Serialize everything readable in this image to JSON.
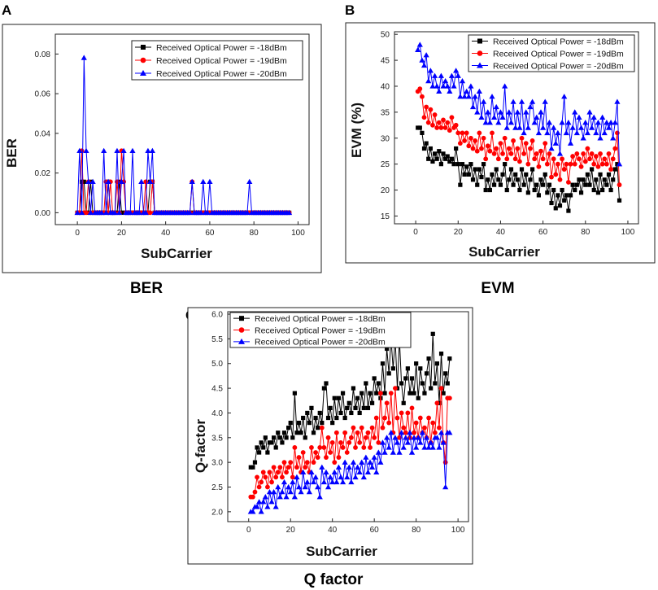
{
  "chart_data": [
    {
      "id": "A",
      "letter": "A",
      "caption": "BER",
      "type": "line",
      "xlabel": "SubCarrier",
      "ylabel": "BER",
      "xlim": [
        -10,
        105
      ],
      "ylim": [
        -0.006,
        0.09
      ],
      "xticks": [
        0,
        20,
        40,
        60,
        80,
        100
      ],
      "xtick_labels": [
        "0",
        "20",
        "40",
        "60",
        "80",
        "100"
      ],
      "yticks": [
        0,
        0.02,
        0.04,
        0.06,
        0.08
      ],
      "ytick_labels": [
        "0.00",
        "0.02",
        "0.04",
        "0.06",
        "0.08"
      ],
      "legend_position": "top-right",
      "series": [
        {
          "name": "Received Optical Power = -18dBm",
          "color": "#000000",
          "marker": "square",
          "spikes": [
            [
              2,
              0.0156
            ],
            [
              3,
              0.0156
            ],
            [
              6,
              0.0156
            ],
            [
              14,
              0.0156
            ],
            [
              19,
              0.0156
            ],
            [
              33,
              0.0156
            ],
            [
              34,
              0.0156
            ]
          ]
        },
        {
          "name": "Received Optical Power = -19dBm",
          "color": "#ff0000",
          "marker": "circle",
          "spikes": [
            [
              2,
              0.0312
            ],
            [
              5,
              0.0156
            ],
            [
              13,
              0.0156
            ],
            [
              15,
              0.0156
            ],
            [
              18,
              0.0156
            ],
            [
              20,
              0.0312
            ],
            [
              21,
              0.0156
            ],
            [
              31,
              0.0156
            ],
            [
              34,
              0.0156
            ],
            [
              52,
              0.0156
            ]
          ]
        },
        {
          "name": "Received Optical Power = -20dBm",
          "color": "#0000ff",
          "marker": "triangle",
          "spikes": [
            [
              1,
              0.0312
            ],
            [
              3,
              0.0781
            ],
            [
              4,
              0.0312
            ],
            [
              5,
              0.0156
            ],
            [
              7,
              0.0156
            ],
            [
              12,
              0.0312
            ],
            [
              14,
              0.0156
            ],
            [
              18,
              0.0312
            ],
            [
              20,
              0.0156
            ],
            [
              21,
              0.0312
            ],
            [
              25,
              0.0312
            ],
            [
              29,
              0.0156
            ],
            [
              32,
              0.0312
            ],
            [
              33,
              0.0156
            ],
            [
              34,
              0.0312
            ],
            [
              52,
              0.0156
            ],
            [
              57,
              0.0156
            ],
            [
              60,
              0.0156
            ],
            [
              78,
              0.0156
            ]
          ]
        }
      ]
    },
    {
      "id": "B",
      "letter": "B",
      "caption": "EVM",
      "type": "line",
      "xlabel": "SubCarrier",
      "ylabel": "EVM (%)",
      "xlim": [
        -10,
        105
      ],
      "ylim": [
        13.5,
        50.5
      ],
      "xticks": [
        0,
        20,
        40,
        60,
        80,
        100
      ],
      "xtick_labels": [
        "0",
        "20",
        "40",
        "60",
        "80",
        "100"
      ],
      "yticks": [
        15,
        20,
        25,
        30,
        35,
        40,
        45,
        50
      ],
      "ytick_labels": [
        "15",
        "20",
        "25",
        "30",
        "35",
        "40",
        "45",
        "50"
      ],
      "legend_position": "top-right",
      "series": [
        {
          "name": "Received Optical Power = -18dBm",
          "color": "#000000",
          "marker": "square",
          "values": [
            32,
            32,
            31,
            28,
            29,
            26,
            28,
            25.5,
            27,
            26,
            27.5,
            25,
            27,
            26,
            26.5,
            25.5,
            26,
            25,
            28,
            25,
            21,
            25,
            23,
            24.5,
            23,
            25,
            22,
            24,
            21,
            24,
            22.5,
            25,
            20,
            22,
            20,
            23,
            21,
            24,
            22,
            21,
            23,
            25,
            20,
            22,
            24,
            21,
            23,
            22,
            20,
            24,
            21,
            23,
            19.5,
            22,
            24,
            20,
            21,
            19,
            22,
            21,
            23,
            19.5,
            21,
            17.5,
            20,
            16.5,
            19,
            17,
            20,
            18,
            19,
            16,
            19,
            21,
            20,
            21,
            22,
            19.5,
            22,
            21,
            23,
            21,
            24,
            20,
            22,
            19.5,
            23,
            20,
            22,
            21,
            23,
            20,
            22,
            24,
            25,
            18
          ]
        },
        {
          "name": "Received Optical Power = -19dBm",
          "color": "#ff0000",
          "marker": "circle",
          "values": [
            39,
            39.5,
            38,
            34,
            36,
            33,
            35.5,
            32.5,
            34.5,
            32,
            33,
            32,
            33.5,
            32,
            33,
            31.5,
            34,
            32,
            32.5,
            31,
            29,
            31,
            29.5,
            31,
            28.5,
            30,
            28,
            29.5,
            27.5,
            31,
            28,
            30,
            26,
            28.5,
            27.5,
            31,
            27,
            28,
            26,
            29,
            27,
            30,
            26,
            28,
            27,
            29.5,
            26,
            28,
            25.5,
            30,
            27,
            29,
            25,
            28,
            29.5,
            26,
            27,
            24.5,
            27.5,
            26,
            29,
            25,
            27,
            22.5,
            26,
            23,
            25,
            22,
            26,
            24,
            25,
            21.5,
            25,
            26.5,
            25,
            27,
            26,
            24.5,
            27,
            25.5,
            28,
            26,
            27,
            25,
            26.5,
            24.5,
            27,
            25,
            26,
            25,
            27,
            24,
            26,
            28,
            31,
            21
          ]
        },
        {
          "name": "Received Optical Power = -20dBm",
          "color": "#0000ff",
          "marker": "triangle",
          "values": [
            47,
            48,
            45,
            44,
            46,
            41,
            43,
            40,
            42,
            40,
            39,
            42,
            40,
            41,
            40,
            39,
            42,
            40,
            43,
            42,
            38,
            41,
            38,
            39,
            38,
            40,
            36,
            38,
            35,
            39,
            34,
            37,
            33,
            35,
            33,
            38,
            34,
            36,
            33,
            35,
            34,
            40,
            32,
            35,
            33,
            37,
            32,
            35,
            32,
            37,
            31,
            35,
            32,
            36,
            37,
            33,
            34,
            31,
            35,
            32,
            37,
            31,
            33,
            28,
            32,
            29,
            31,
            27,
            33,
            38,
            31,
            33,
            29,
            32,
            35,
            31,
            34,
            32,
            30,
            33,
            31,
            35,
            32,
            34,
            31,
            33,
            30,
            34,
            31,
            33,
            32,
            33,
            30,
            33,
            37,
            25
          ]
        }
      ]
    },
    {
      "id": "C",
      "letter": "C",
      "caption": "Q factor",
      "type": "line",
      "xlabel": "SubCarrier",
      "ylabel": "Q-factor",
      "xlim": [
        -10,
        105
      ],
      "ylim": [
        1.8,
        6.05
      ],
      "xticks": [
        0,
        20,
        40,
        60,
        80,
        100
      ],
      "xtick_labels": [
        "0",
        "20",
        "40",
        "60",
        "80",
        "100"
      ],
      "yticks": [
        2.0,
        2.5,
        3.0,
        3.5,
        4.0,
        4.5,
        5.0,
        5.5,
        6.0
      ],
      "ytick_labels": [
        "2.0",
        "2.5",
        "3.0",
        "3.5",
        "4.0",
        "4.5",
        "5.0",
        "5.5",
        "6.0"
      ],
      "legend_position": "top-left",
      "series": [
        {
          "name": "Received Optical Power = -18dBm",
          "color": "#000000",
          "marker": "square",
          "values": [
            2.9,
            2.9,
            3.0,
            3.3,
            3.2,
            3.4,
            3.3,
            3.5,
            3.2,
            3.4,
            3.4,
            3.5,
            3.3,
            3.6,
            3.5,
            3.4,
            3.6,
            3.5,
            3.7,
            3.8,
            3.5,
            4.4,
            3.6,
            3.8,
            3.6,
            3.9,
            3.5,
            4.0,
            3.8,
            4.1,
            3.6,
            3.9,
            3.7,
            4.0,
            3.8,
            4.5,
            4.6,
            3.9,
            4.1,
            3.8,
            4.3,
            3.9,
            4.3,
            4.0,
            4.4,
            3.9,
            4.1,
            4.2,
            4.0,
            4.5,
            4.1,
            4.3,
            4.0,
            4.4,
            4.1,
            4.6,
            4.1,
            4.4,
            4.2,
            4.7,
            4.4,
            4.6,
            4.3,
            5.0,
            4.4,
            5.3,
            4.8,
            5.5,
            4.9,
            5.5,
            4.5,
            5.5,
            4.6,
            4.2,
            4.7,
            4.9,
            4.4,
            4.7,
            4.4,
            5.0,
            4.3,
            4.9,
            4.6,
            4.4,
            4.8,
            5.1,
            4.5,
            5.6,
            4.6,
            5.0,
            4.2,
            5.2,
            4.4,
            4.8,
            4.6,
            5.1
          ]
        },
        {
          "name": "Received Optical Power = -19dBm",
          "color": "#ff0000",
          "marker": "circle",
          "values": [
            2.3,
            2.3,
            2.4,
            2.7,
            2.5,
            2.6,
            2.8,
            2.7,
            2.5,
            2.8,
            2.6,
            2.9,
            2.7,
            2.8,
            2.9,
            2.7,
            3.0,
            2.8,
            2.9,
            3.0,
            2.7,
            3.3,
            2.9,
            3.1,
            2.8,
            3.2,
            2.9,
            3.0,
            2.8,
            3.3,
            3.0,
            3.2,
            3.1,
            3.3,
            3.7,
            3.3,
            3.1,
            3.5,
            3.2,
            3.4,
            3.0,
            3.6,
            3.1,
            3.4,
            3.3,
            3.6,
            3.2,
            3.4,
            3.5,
            3.7,
            3.3,
            3.6,
            3.4,
            3.7,
            3.3,
            3.5,
            3.6,
            3.3,
            3.7,
            3.5,
            3.9,
            3.4,
            4.4,
            3.7,
            3.9,
            4.2,
            3.8,
            4.4,
            3.6,
            4.5,
            3.9,
            3.5,
            4.0,
            3.7,
            3.6,
            4.0,
            3.5,
            4.1,
            3.6,
            3.8,
            3.5,
            3.9,
            3.6,
            3.7,
            3.5,
            3.9,
            3.4,
            3.8,
            3.6,
            4.2,
            3.7,
            4.5,
            3.4,
            3.0,
            4.3,
            4.3
          ]
        },
        {
          "name": "Received Optical Power = -20dBm",
          "color": "#0000ff",
          "marker": "triangle",
          "values": [
            2.0,
            2.0,
            2.1,
            2.1,
            2.2,
            2.0,
            2.2,
            2.3,
            2.1,
            2.4,
            2.2,
            2.4,
            2.1,
            2.5,
            2.3,
            2.4,
            2.6,
            2.3,
            2.5,
            2.4,
            2.6,
            2.3,
            2.7,
            2.5,
            2.4,
            2.8,
            2.5,
            2.6,
            2.4,
            2.8,
            2.6,
            2.7,
            2.5,
            2.3,
            2.9,
            2.6,
            2.8,
            2.5,
            2.7,
            2.6,
            2.8,
            2.6,
            2.9,
            2.7,
            2.6,
            3.0,
            2.7,
            2.9,
            2.6,
            3.0,
            2.7,
            2.9,
            2.8,
            3.0,
            2.7,
            3.1,
            2.8,
            3.0,
            2.9,
            3.1,
            2.8,
            3.2,
            3.0,
            3.4,
            3.2,
            3.5,
            3.3,
            3.6,
            3.2,
            3.5,
            3.4,
            3.2,
            3.6,
            3.3,
            3.5,
            3.4,
            3.6,
            3.2,
            3.5,
            3.3,
            3.5,
            3.4,
            3.6,
            3.3,
            3.5,
            3.3,
            3.4,
            3.3,
            3.5,
            3.5,
            3.3,
            3.6,
            3.4,
            2.5,
            3.6,
            3.6
          ]
        }
      ]
    }
  ]
}
